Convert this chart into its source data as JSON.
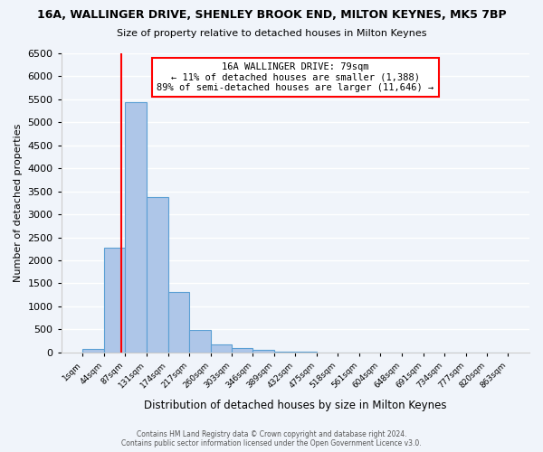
{
  "title1": "16A, WALLINGER DRIVE, SHENLEY BROOK END, MILTON KEYNES, MK5 7BP",
  "title2": "Size of property relative to detached houses in Milton Keynes",
  "xlabel": "Distribution of detached houses by size in Milton Keynes",
  "ylabel": "Number of detached properties",
  "bin_labels": [
    "1sqm",
    "44sqm",
    "87sqm",
    "131sqm",
    "174sqm",
    "217sqm",
    "260sqm",
    "303sqm",
    "346sqm",
    "389sqm",
    "432sqm",
    "475sqm",
    "518sqm",
    "561sqm",
    "604sqm",
    "648sqm",
    "691sqm",
    "734sqm",
    "777sqm",
    "820sqm",
    "863sqm"
  ],
  "bin_edges": [
    1,
    44,
    87,
    131,
    174,
    217,
    260,
    303,
    346,
    389,
    432,
    475,
    518,
    561,
    604,
    648,
    691,
    734,
    777,
    820,
    863
  ],
  "bar_values": [
    75,
    2270,
    5430,
    3380,
    1310,
    480,
    175,
    100,
    50,
    20,
    10,
    5,
    0,
    0,
    0,
    0,
    0,
    0,
    0,
    0
  ],
  "bar_color": "#aec6e8",
  "bar_edgecolor": "#5a9fd4",
  "property_line_x": 79,
  "property_line_color": "red",
  "annotation_title": "16A WALLINGER DRIVE: 79sqm",
  "annotation_line1": "← 11% of detached houses are smaller (1,388)",
  "annotation_line2": "89% of semi-detached houses are larger (11,646) →",
  "annotation_box_color": "white",
  "annotation_box_edgecolor": "red",
  "ylim": [
    0,
    6500
  ],
  "yticks": [
    0,
    500,
    1000,
    1500,
    2000,
    2500,
    3000,
    3500,
    4000,
    4500,
    5000,
    5500,
    6000,
    6500
  ],
  "background_color": "#f0f4fa",
  "grid_color": "white",
  "footer1": "Contains HM Land Registry data © Crown copyright and database right 2024.",
  "footer2": "Contains public sector information licensed under the Open Government Licence v3.0."
}
